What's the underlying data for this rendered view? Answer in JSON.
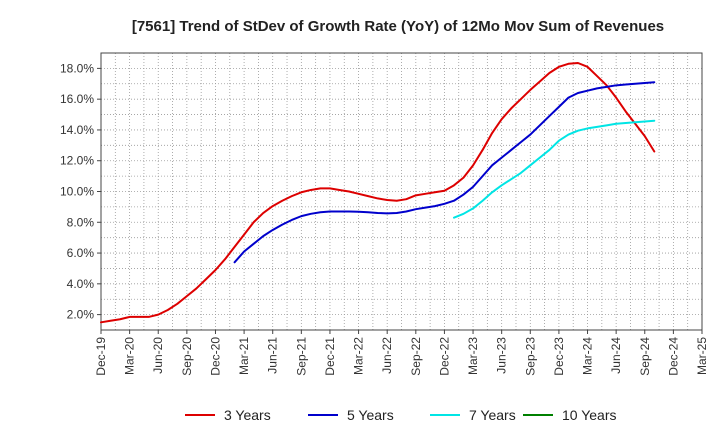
{
  "chart_data": {
    "type": "line",
    "title": "[7561]  Trend of StDev of Growth Rate (YoY) of 12Mo Mov Sum of Revenues",
    "xlabel": "",
    "ylabel": "",
    "x_ticks": [
      "Dec-19",
      "Mar-20",
      "Jun-20",
      "Sep-20",
      "Dec-20",
      "Mar-21",
      "Jun-21",
      "Sep-21",
      "Dec-21",
      "Mar-22",
      "Jun-22",
      "Sep-22",
      "Dec-22",
      "Mar-23",
      "Jun-23",
      "Sep-23",
      "Dec-23",
      "Mar-24",
      "Jun-24",
      "Sep-24",
      "Dec-24",
      "Mar-25"
    ],
    "y_ticks": [
      "2.0%",
      "4.0%",
      "6.0%",
      "8.0%",
      "10.0%",
      "12.0%",
      "14.0%",
      "16.0%",
      "18.0%"
    ],
    "ylim": [
      1.0,
      19.0
    ],
    "grid": true,
    "legend_position": "bottom",
    "series": [
      {
        "name": "3 Years",
        "color": "#dd0000",
        "start_index": 0,
        "values": [
          1.5,
          1.6,
          1.7,
          1.85,
          1.85,
          1.85,
          2.0,
          2.3,
          2.7,
          3.2,
          3.7,
          4.3,
          4.9,
          5.6,
          6.4,
          7.2,
          8.0,
          8.6,
          9.05,
          9.4,
          9.7,
          9.95,
          10.1,
          10.2,
          10.2,
          10.1,
          10.0,
          9.85,
          9.7,
          9.55,
          9.45,
          9.4,
          9.5,
          9.75,
          9.85,
          9.95,
          10.05,
          10.4,
          10.9,
          11.7,
          12.7,
          13.8,
          14.7,
          15.4,
          16.0,
          16.6,
          17.15,
          17.7,
          18.1,
          18.3,
          18.35,
          18.1,
          17.5,
          16.9,
          16.1,
          15.2,
          14.4,
          13.6,
          12.6
        ]
      },
      {
        "name": "5 Years",
        "color": "#0000cc",
        "start_index": 14,
        "values": [
          5.4,
          6.1,
          6.6,
          7.1,
          7.5,
          7.85,
          8.15,
          8.4,
          8.55,
          8.65,
          8.7,
          8.7,
          8.7,
          8.68,
          8.65,
          8.6,
          8.58,
          8.6,
          8.7,
          8.85,
          8.95,
          9.05,
          9.2,
          9.4,
          9.8,
          10.3,
          11.0,
          11.7,
          12.2,
          12.7,
          13.2,
          13.7,
          14.3,
          14.9,
          15.5,
          16.1,
          16.4,
          16.55,
          16.7,
          16.8,
          16.9,
          16.95,
          17.0,
          17.05,
          17.1
        ]
      },
      {
        "name": "7 Years",
        "color": "#00e5e5",
        "start_index": 37,
        "values": [
          8.3,
          8.55,
          8.9,
          9.4,
          9.95,
          10.4,
          10.8,
          11.2,
          11.7,
          12.2,
          12.7,
          13.3,
          13.7,
          13.95,
          14.1,
          14.2,
          14.3,
          14.4,
          14.45,
          14.5,
          14.55,
          14.6
        ]
      },
      {
        "name": "10 Years",
        "color": "#008000",
        "start_index": 0,
        "values": []
      }
    ]
  }
}
